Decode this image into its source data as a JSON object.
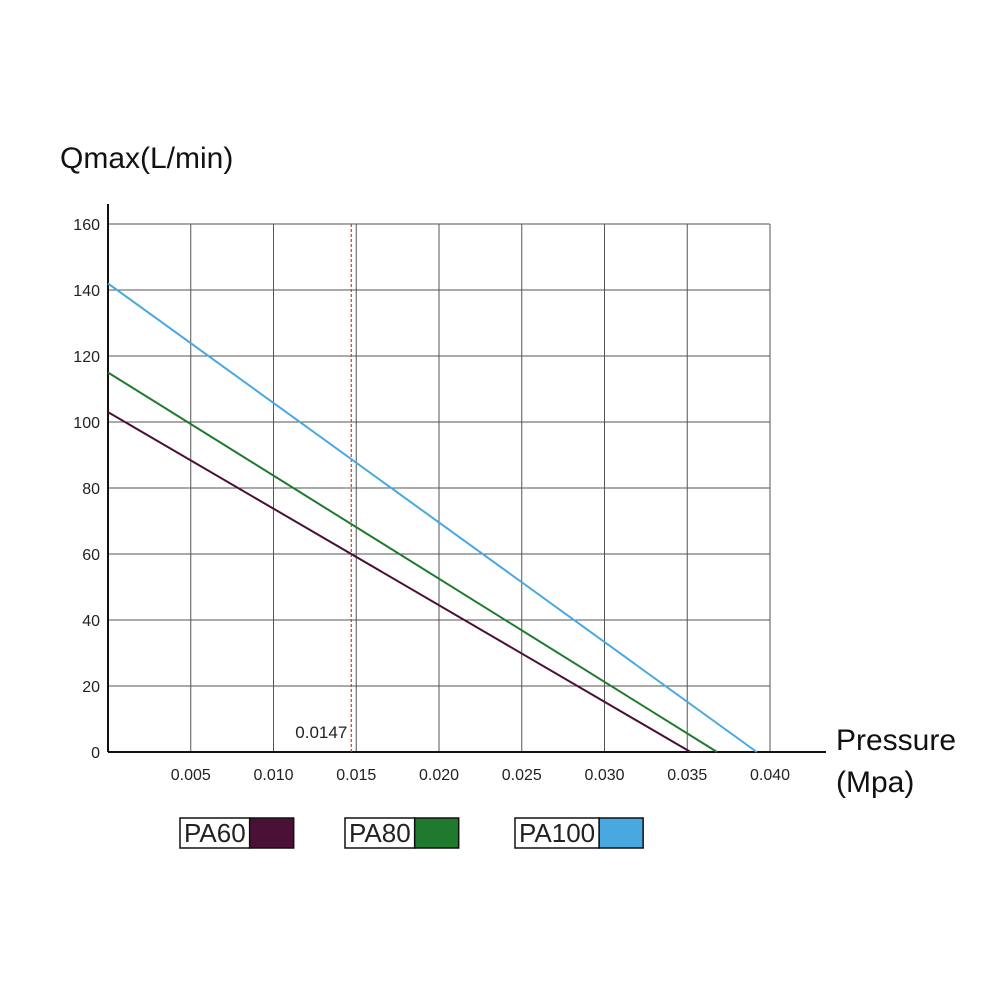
{
  "chart_data": {
    "type": "line",
    "ylabel": "Qmax(L/min)",
    "xlabel_line1": "Pressure",
    "xlabel_line2": "(Mpa)",
    "xlim": [
      0,
      0.04
    ],
    "ylim": [
      0,
      160
    ],
    "grid": true,
    "legend_position": "bottom",
    "x_ticks": [
      "0.005",
      "0.010",
      "0.015",
      "0.020",
      "0.025",
      "0.030",
      "0.035",
      "0.040"
    ],
    "x_tick_values": [
      0.005,
      0.01,
      0.015,
      0.02,
      0.025,
      0.03,
      0.035,
      0.04
    ],
    "y_ticks": [
      "0",
      "20",
      "40",
      "60",
      "80",
      "100",
      "120",
      "140",
      "160"
    ],
    "y_tick_values": [
      0,
      20,
      40,
      60,
      80,
      100,
      120,
      140,
      160
    ],
    "reference_line": {
      "x": 0.0147,
      "label": "0.0147",
      "color": "#d9362a"
    },
    "series": [
      {
        "name": "PA60",
        "color": "#4a1036",
        "x": [
          0,
          0.0352
        ],
        "y": [
          103,
          0
        ]
      },
      {
        "name": "PA80",
        "color": "#1f7a2e",
        "x": [
          0,
          0.0368
        ],
        "y": [
          115,
          0
        ]
      },
      {
        "name": "PA100",
        "color": "#4aa8e0",
        "x": [
          0,
          0.0392
        ],
        "y": [
          142,
          0
        ]
      }
    ]
  }
}
